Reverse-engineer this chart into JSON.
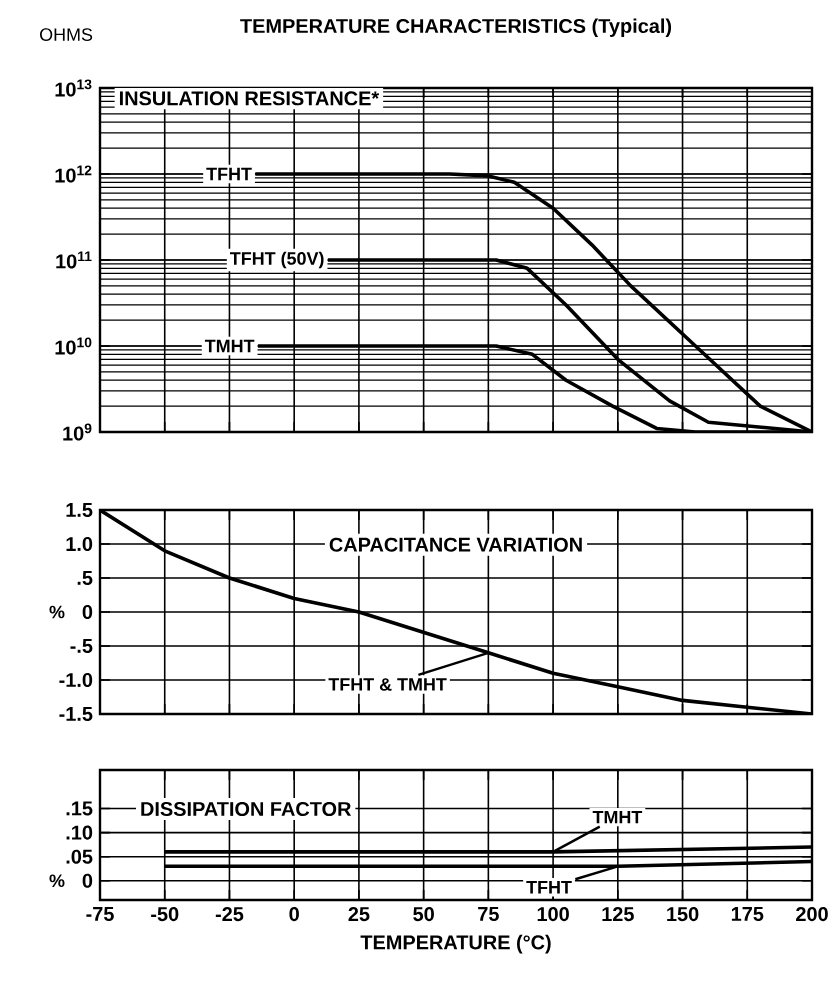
{
  "chart_data": [
    {
      "type": "line",
      "title": "TEMPERATURE CHARACTERISTICS (Typical)",
      "ylabel": "OHMS",
      "annotations": [
        "INSULATION RESISTANCE*"
      ],
      "log": "y",
      "grid": true,
      "tick_labels": "y",
      "marker": "none",
      "line_style": "solid",
      "xlim": [
        -75,
        200
      ],
      "xticks": [
        -75,
        -50,
        -25,
        0,
        25,
        50,
        75,
        100,
        125,
        150,
        175,
        200
      ],
      "ylim": [
        1000000000.0,
        10000000000000.0
      ],
      "yticks": [
        {
          "value": 1000000000.0,
          "label": "10$^{9}$"
        },
        {
          "value": 10000000000.0,
          "label": "10$^{10}$"
        },
        {
          "value": 100000000000.0,
          "label": "10$^{11}$"
        },
        {
          "value": 1000000000000.0,
          "label": "10$^{12}$"
        },
        {
          "value": 10000000000000.0,
          "label": "10$^{13}$"
        }
      ],
      "series": [
        {
          "name": "TFHT",
          "color": "#000000",
          "x": [
            -15,
            60,
            75,
            85,
            100,
            115,
            130,
            155,
            180,
            200
          ],
          "values": [
            1000000000000.0,
            1000000000000.0,
            950000000000.0,
            800000000000.0,
            400000000000.0,
            150000000000.0,
            50000000000.0,
            10000000000.0,
            2000000000.0,
            1000000000.0
          ]
        },
        {
          "name": "TFHT (50V)",
          "color": "#000000",
          "x": [
            13,
            78,
            90,
            105,
            125,
            145,
            160,
            200
          ],
          "values": [
            100000000000.0,
            100000000000.0,
            80000000000.0,
            30000000000.0,
            7000000000.0,
            2300000000.0,
            1300000000.0,
            1000000000.0
          ]
        },
        {
          "name": "TMHT",
          "color": "#000000",
          "x": [
            -14,
            78,
            92,
            105,
            123,
            140,
            155,
            200
          ],
          "values": [
            10000000000.0,
            10000000000.0,
            8000000000.0,
            4000000000.0,
            2000000000.0,
            1100000000.0,
            1000000000.0,
            1000000000.0
          ]
        }
      ]
    },
    {
      "type": "line",
      "ylabel": "%",
      "annotations": [
        "CAPACITANCE VARIATION"
      ],
      "grid": true,
      "tick_labels": "y",
      "marker": "none",
      "line_style": "solid",
      "xlim": [
        -75,
        200
      ],
      "xticks": [
        -75,
        -50,
        -25,
        0,
        25,
        50,
        75,
        100,
        125,
        150,
        175,
        200
      ],
      "ylim": [
        -1.5,
        1.5
      ],
      "yticks": [
        {
          "value": -1.5,
          "label": "-1.5"
        },
        {
          "value": -1.0,
          "label": "-1.0"
        },
        {
          "value": -0.5,
          "label": "-.5"
        },
        0,
        {
          "value": 0.5,
          "label": ".5"
        },
        {
          "value": 1.0,
          "label": "1.0"
        },
        {
          "value": 1.5,
          "label": "1.5"
        }
      ],
      "series": [
        {
          "name": "TFHT & TMHT",
          "color": "#000000",
          "x": [
            -75,
            -50,
            -25,
            0,
            25,
            50,
            75,
            100,
            125,
            150,
            175,
            200
          ],
          "values": [
            1.5,
            0.9,
            0.5,
            0.2,
            0.0,
            -0.3,
            -0.6,
            -0.9,
            -1.1,
            -1.3,
            -1.4,
            -1.5
          ]
        }
      ]
    },
    {
      "type": "line",
      "ylabel": "%",
      "xlabel": "TEMPERATURE (°C)",
      "annotations": [
        "DISSIPATION FACTOR"
      ],
      "grid": true,
      "marker": "none",
      "line_style": "solid",
      "xlim": [
        -75,
        200
      ],
      "xticks": [
        -75,
        -50,
        -25,
        0,
        25,
        50,
        75,
        100,
        125,
        150,
        175,
        200
      ],
      "ylim": [
        -0.04,
        0.23
      ],
      "yticks": [
        0,
        {
          "value": 0.05,
          "label": ".05"
        },
        {
          "value": 0.1,
          "label": ".10"
        },
        {
          "value": 0.15,
          "label": ".15"
        }
      ],
      "series": [
        {
          "name": "TMHT",
          "color": "#000000",
          "x": [
            -50,
            100,
            200
          ],
          "values": [
            0.06,
            0.06,
            0.07
          ]
        },
        {
          "name": "TFHT",
          "color": "#000000",
          "x": [
            -50,
            125,
            200
          ],
          "values": [
            0.03,
            0.03,
            0.04
          ]
        }
      ]
    }
  ]
}
